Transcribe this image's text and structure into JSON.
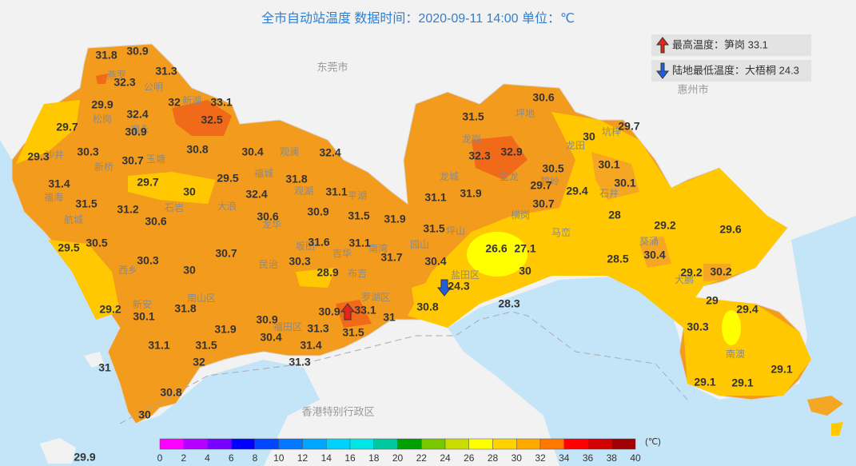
{
  "title": "全市自动站温度  数据时间：2020-09-11 14:00  单位：℃",
  "extremes": [
    "最高温度：笋岗 33.1",
    "陆地最低温度：大梧桐 24.3"
  ],
  "regions": [
    "东莞市",
    "惠州市",
    "香港特别行政区"
  ],
  "places": [
    "燕罗",
    "公明",
    "新湖",
    "松岗",
    "沙井",
    "新桥",
    "玉塘",
    "福永",
    "福海",
    "航城",
    "石岩",
    "大浪",
    "西乡",
    "新安",
    "南山区",
    "福田区",
    "罗湖区",
    "盐田区",
    "坪地",
    "龙岗",
    "龙城",
    "宝龙",
    "坑梓",
    "龙田",
    "石井",
    "坪山",
    "马峦",
    "葵涌",
    "大鹏",
    "南澳",
    "观澜",
    "观湖",
    "民治",
    "龙华",
    "福城",
    "平湖",
    "坂田",
    "吉华",
    "布吉",
    "南湾",
    "园山",
    "横岗",
    "碧岭"
  ],
  "stations": [
    31.8,
    30.9,
    31.3,
    32.3,
    32,
    33.1,
    29.9,
    32.4,
    32.5,
    29.7,
    30.9,
    29.3,
    30.3,
    30.8,
    30.7,
    30.4,
    32.4,
    31.4,
    29.7,
    30,
    29.5,
    31.8,
    32.4,
    31.1,
    31.5,
    31.2,
    30.6,
    30.6,
    30.9,
    31.5,
    31.9,
    30.5,
    29.5,
    30.7,
    31.6,
    31.1,
    31.7,
    30.3,
    30,
    30.3,
    28.9,
    29.2,
    30.1,
    31.8,
    30.9,
    30.9,
    33.1,
    31,
    31.9,
    31.3,
    31.5,
    30.4,
    31.1,
    31.5,
    31.4,
    32,
    31,
    31.3,
    30.8,
    30,
    29.9,
    30.6,
    31.5,
    29.7,
    30,
    32.3,
    32.9,
    30.5,
    30.1,
    31.9,
    29.7,
    29.4,
    30.1,
    31.1,
    30.7,
    28,
    31.5,
    29.2,
    29.6,
    26.6,
    27.1,
    30.4,
    28.5,
    30.4,
    30,
    29.2,
    30.2,
    24.3,
    30.8,
    28.3,
    29,
    29.4,
    30.3,
    29.1,
    29.1,
    29.1
  ],
  "scale": {
    "ticks": [
      0,
      2,
      4,
      6,
      8,
      10,
      12,
      14,
      16,
      18,
      20,
      22,
      24,
      26,
      28,
      30,
      32,
      34,
      36,
      38,
      40
    ],
    "unit": "(℃)",
    "colors": [
      "#ff00ff",
      "#b400ff",
      "#7800ff",
      "#0000ff",
      "#0046ff",
      "#0078ff",
      "#00a5ff",
      "#00d2ff",
      "#00e6e6",
      "#00c8a0",
      "#00a000",
      "#78c800",
      "#c8dc00",
      "#ffff00",
      "#ffd200",
      "#ffaa00",
      "#ff7800",
      "#ff0000",
      "#d20000",
      "#a00000"
    ]
  }
}
